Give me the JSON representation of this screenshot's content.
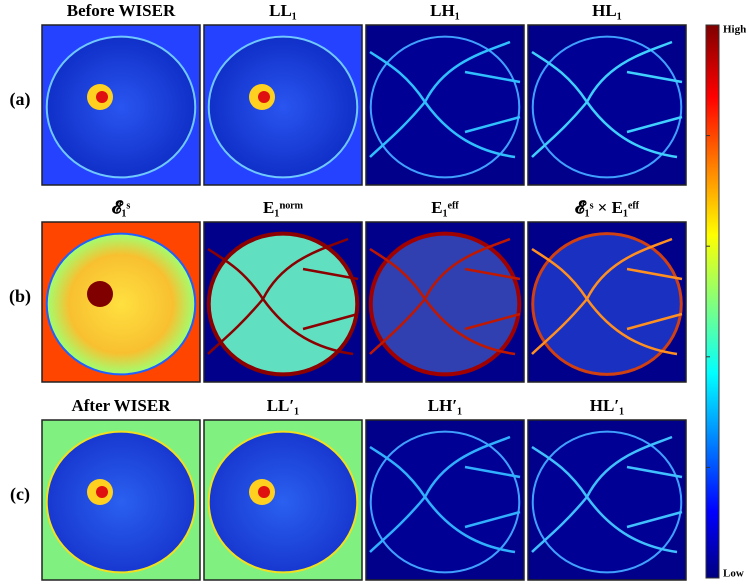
{
  "rows": [
    {
      "label": "(a)",
      "panels": [
        "Before WISER",
        "LL₁",
        "LH₁",
        "HL₁"
      ]
    },
    {
      "label": "(b)",
      "panels": [
        "𝓔₁ˢ",
        "E₁ⁿᵒʳᵐ",
        "E₁ᵉᶠᶠ",
        "𝓔₁ˢ × E₁ᵉᶠᶠ"
      ]
    },
    {
      "label": "(c)",
      "panels": [
        "After WISER",
        "LL′₁",
        "LH′₁",
        "HL′₁"
      ]
    }
  ],
  "colorbar": {
    "high": "High",
    "low": "Low"
  }
}
